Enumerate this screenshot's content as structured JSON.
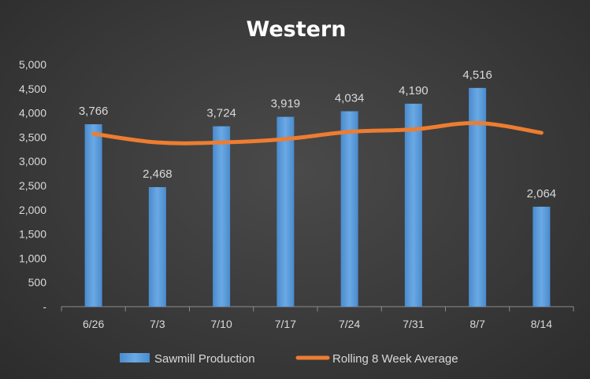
{
  "chart_data": {
    "type": "bar",
    "title": "Western",
    "xlabel": "",
    "ylabel": "",
    "categories": [
      "6/26",
      "7/3",
      "7/10",
      "7/17",
      "7/24",
      "7/31",
      "8/7",
      "8/14"
    ],
    "y_ticks": [
      "-",
      "500",
      "1,000",
      "1,500",
      "2,000",
      "2,500",
      "3,000",
      "3,500",
      "4,000",
      "4,500",
      "5,000"
    ],
    "ylim": [
      0,
      5000
    ],
    "grid": false,
    "legend_position": "bottom",
    "series": [
      {
        "name": "Sawmill Production",
        "type": "bar",
        "color": "#5b9bd5",
        "values": [
          3766,
          2468,
          3724,
          3919,
          4034,
          4190,
          4516,
          2064
        ],
        "labels": [
          "3,766",
          "2,468",
          "3,724",
          "3,919",
          "4,034",
          "4,190",
          "4,516",
          "2,064"
        ]
      },
      {
        "name": "Rolling 8 Week Average",
        "type": "line",
        "color": "#ed7d31",
        "values": [
          3570,
          3390,
          3390,
          3460,
          3610,
          3660,
          3790,
          3590
        ]
      }
    ]
  }
}
